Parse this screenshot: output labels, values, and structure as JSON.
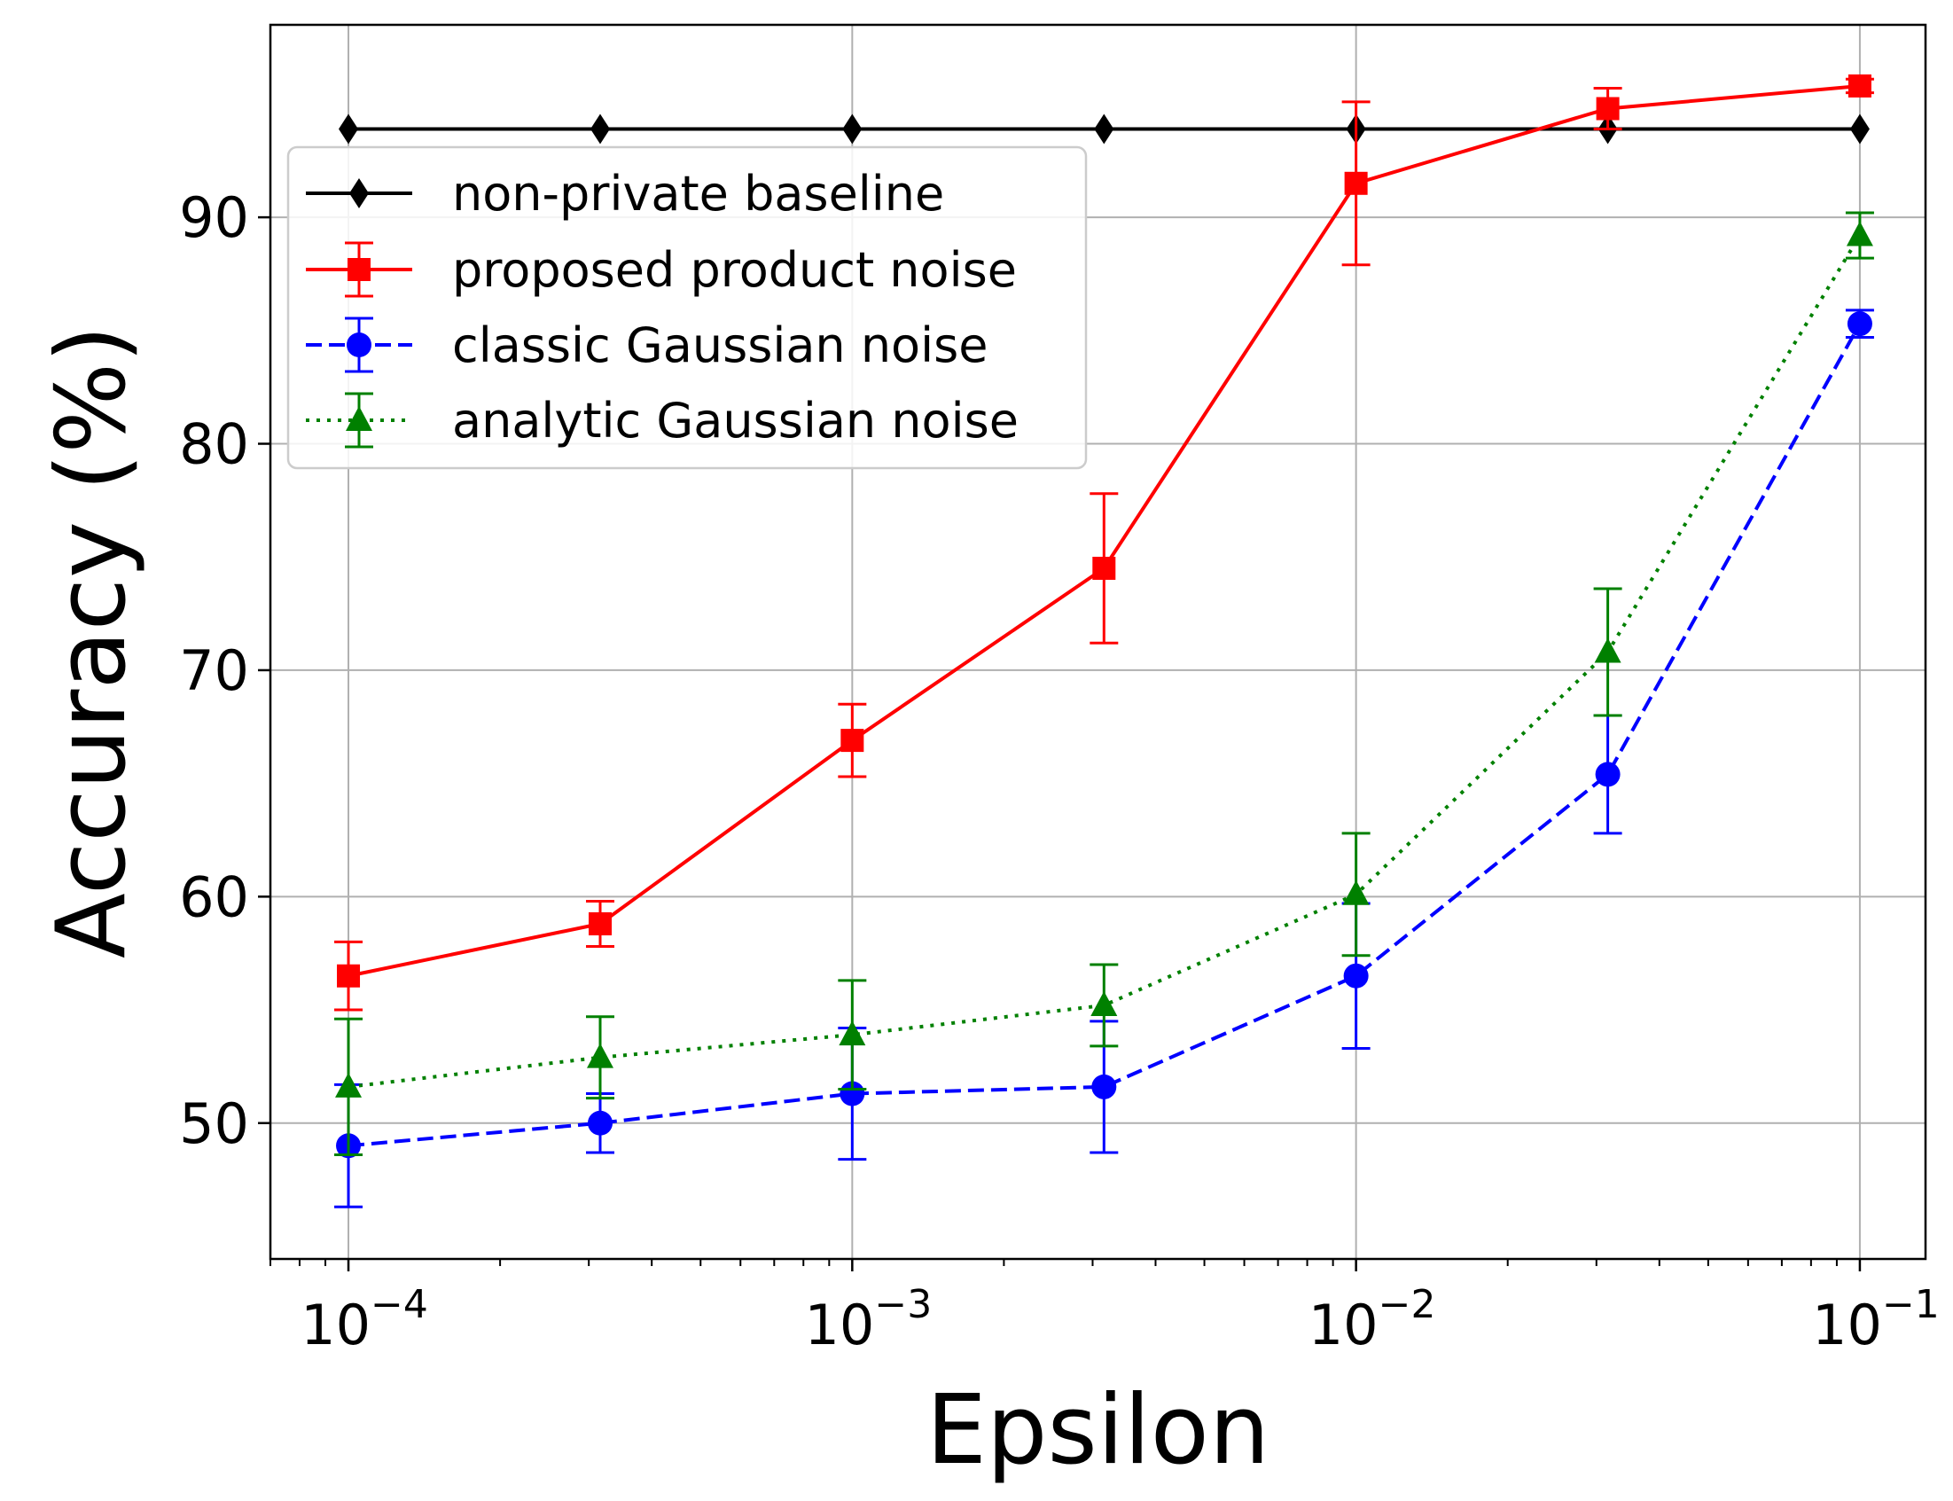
{
  "chart_data": {
    "type": "line",
    "title": "",
    "xlabel": "Epsilon",
    "ylabel": "Accuracy (%)",
    "xscale": "log",
    "xlim": [
      7e-05,
      0.135
    ],
    "ylim": [
      44,
      98.5
    ],
    "xticks": [
      {
        "value": 0.0001,
        "base": "10",
        "exp": "−4"
      },
      {
        "value": 0.001,
        "base": "10",
        "exp": "−3"
      },
      {
        "value": 0.01,
        "base": "10",
        "exp": "−2"
      },
      {
        "value": 0.1,
        "base": "10",
        "exp": "−1"
      }
    ],
    "yticks": [
      {
        "value": 50,
        "label": "50"
      },
      {
        "value": 60,
        "label": "60"
      },
      {
        "value": 70,
        "label": "70"
      },
      {
        "value": 80,
        "label": "80"
      },
      {
        "value": 90,
        "label": "90"
      }
    ],
    "grid": true,
    "legend_position": "upper-left",
    "x": [
      0.0001,
      0.000316,
      0.001,
      0.00316,
      0.01,
      0.0316,
      0.1
    ],
    "series": [
      {
        "name": "non-private baseline",
        "color": "#000000",
        "line_style": "solid",
        "marker": "diamond",
        "values": [
          93.9,
          93.9,
          93.9,
          93.9,
          93.9,
          93.9,
          93.9
        ],
        "errors": null
      },
      {
        "name": "proposed product noise",
        "color": "#ff0000",
        "line_style": "solid",
        "marker": "square",
        "values": [
          56.5,
          58.8,
          66.9,
          74.5,
          91.5,
          94.8,
          95.8
        ],
        "errors": [
          1.5,
          1.0,
          1.6,
          3.3,
          3.6,
          0.9,
          0.3
        ]
      },
      {
        "name": "classic Gaussian noise",
        "color": "#0000ff",
        "line_style": "dashed",
        "marker": "circle",
        "values": [
          49.0,
          50.0,
          51.3,
          51.6,
          56.5,
          65.4,
          85.3
        ],
        "errors": [
          2.7,
          1.3,
          2.9,
          2.9,
          3.2,
          2.6,
          0.6
        ]
      },
      {
        "name": "analytic Gaussian noise",
        "color": "#008000",
        "line_style": "dotted",
        "marker": "triangle",
        "values": [
          51.6,
          52.9,
          53.9,
          55.2,
          60.1,
          70.8,
          89.2
        ],
        "errors": [
          3.0,
          1.8,
          2.4,
          1.8,
          2.7,
          2.8,
          1.0
        ]
      }
    ]
  }
}
